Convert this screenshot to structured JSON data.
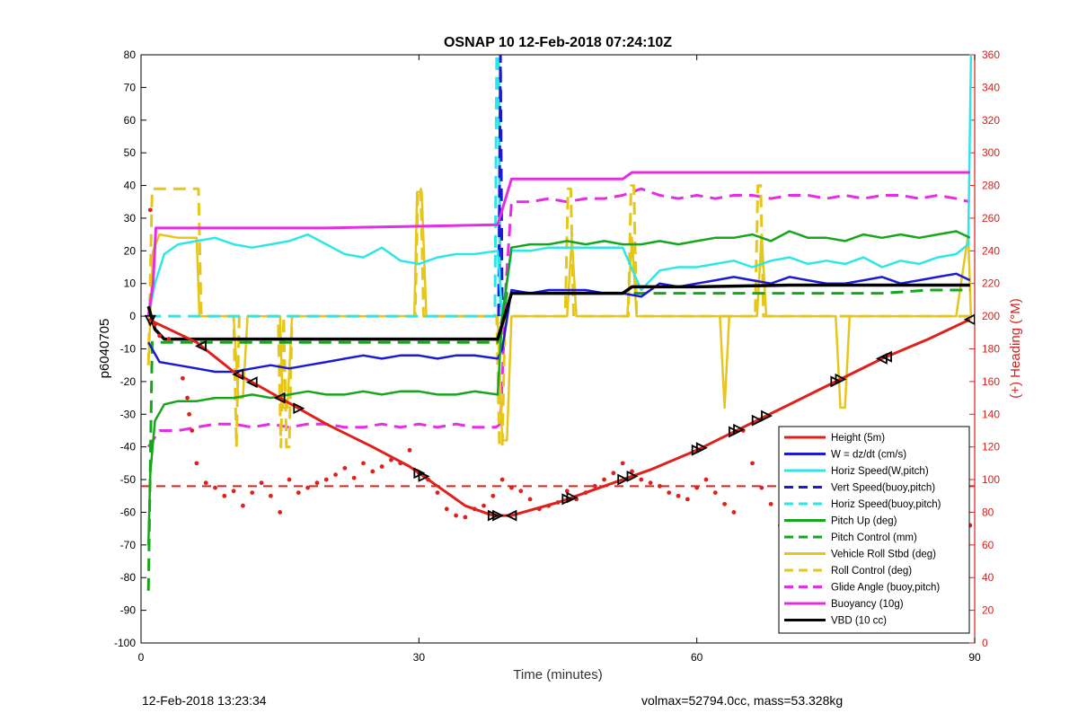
{
  "footer": {
    "timestamp": "12-Feb-2018 13:23:34",
    "volmax_mass": "volmax=52794.0cc, mass=53.328kg"
  },
  "chart_data": {
    "type": "line",
    "title": "OSNAP 10 12-Feb-2018 07:24:10Z",
    "xlabel": "Time (minutes)",
    "ylabel": "p6040705",
    "y2label": "(+) Heading (°M)",
    "xlim": [
      0,
      90
    ],
    "ylim": [
      -100,
      80
    ],
    "y2lim": [
      0,
      360
    ],
    "xticks": [
      0,
      30,
      60,
      90
    ],
    "yticks": [
      -100,
      -90,
      -80,
      -70,
      -60,
      -50,
      -40,
      -30,
      -20,
      -10,
      0,
      10,
      20,
      30,
      40,
      50,
      60,
      70,
      80
    ],
    "y2ticks": [
      0,
      20,
      40,
      60,
      80,
      100,
      120,
      140,
      160,
      180,
      200,
      220,
      240,
      260,
      280,
      300,
      320,
      340,
      360
    ],
    "grid": false,
    "legend_position": "bottom-right",
    "colors": {
      "red": "#e0201b",
      "blue": "#1a1ad4",
      "cyan": "#2ee6e6",
      "green": "#17a51c",
      "gold": "#e6c619",
      "magenta": "#e52de5",
      "black": "#000000",
      "heading_axis": "#d6201b"
    },
    "series": [
      {
        "name": "Height (5m)",
        "color": "#e0201b",
        "style": "solid",
        "width": 3,
        "x": [
          0.8,
          6,
          10,
          15,
          20,
          25,
          29,
          32,
          35,
          38,
          40,
          45,
          50,
          55,
          60,
          65,
          70,
          75,
          80,
          85,
          89.5
        ],
        "y": [
          -1,
          -8,
          -17,
          -25,
          -33,
          -40,
          -46,
          -52,
          -58,
          -61,
          -61,
          -57,
          -52,
          -47,
          -41,
          -34,
          -27,
          -20,
          -13,
          -7,
          -1
        ]
      },
      {
        "name": "W = dz/dt (cm/s)",
        "color": "#1a1ad4",
        "style": "solid",
        "width": 2.5,
        "x": [
          0.8,
          2,
          4,
          6,
          8,
          10,
          12,
          14,
          16,
          18,
          20,
          22,
          24,
          26,
          28,
          30,
          32,
          34,
          36,
          38.5,
          39,
          40,
          42,
          44,
          46,
          48,
          50,
          52,
          54,
          56,
          58,
          60,
          62,
          64,
          66,
          68,
          70,
          72,
          74,
          76,
          78,
          80,
          82,
          84,
          86,
          88,
          89.5
        ],
        "y": [
          -8,
          -14,
          -15,
          -16,
          -17,
          -17,
          -16,
          -15,
          -16,
          -15,
          -14,
          -13,
          -12,
          -13,
          -12,
          -12,
          -13,
          -12,
          -12,
          -13,
          -10,
          8,
          7,
          8,
          8,
          8,
          7,
          7,
          6,
          10,
          9,
          10,
          11,
          12,
          11,
          10,
          12,
          11,
          10,
          10,
          11,
          12,
          10,
          11,
          12,
          13,
          11
        ]
      },
      {
        "name": "Horiz Speed(W,pitch)",
        "color": "#2ee6e6",
        "style": "solid",
        "width": 2.5,
        "x": [
          0.8,
          1.5,
          2.5,
          4,
          6,
          8,
          10,
          12,
          14,
          16,
          18,
          20,
          22,
          24,
          26,
          28,
          30,
          32,
          34,
          36,
          38.5,
          39,
          40,
          42,
          44,
          46,
          48,
          50,
          52,
          54,
          56,
          58,
          60,
          62,
          64,
          66,
          68,
          70,
          72,
          74,
          76,
          78,
          80,
          82,
          84,
          86,
          88,
          89.3,
          89.6
        ],
        "y": [
          0,
          10,
          19,
          22,
          23,
          24,
          22,
          21,
          22,
          23,
          25,
          22,
          19,
          18,
          21,
          17,
          16,
          18,
          19,
          19,
          20,
          0,
          20,
          20,
          21,
          21,
          21,
          21,
          21,
          8,
          14,
          15,
          15,
          16,
          17,
          15,
          17,
          18,
          16,
          17,
          16,
          18,
          15,
          17,
          16,
          18,
          19,
          22,
          80
        ]
      },
      {
        "name": "Vert Speed(buoy,pitch)",
        "color": "#1a1ad4",
        "style": "dashed",
        "width": 3,
        "x": [
          38.6,
          38.8,
          39.0
        ],
        "y": [
          0,
          80,
          0
        ]
      },
      {
        "name": "Horiz Speed(buoy,pitch)",
        "color": "#2ee6e6",
        "style": "dashed",
        "width": 3,
        "x": [
          0.8,
          38.2,
          38.4,
          38.6,
          38.8
        ],
        "y": [
          0,
          0,
          80,
          80,
          0
        ]
      },
      {
        "name": "Pitch Up (deg)",
        "color": "#17a51c",
        "style": "solid",
        "width": 2.5,
        "x": [
          0.8,
          1.0,
          1.5,
          2.5,
          4,
          6,
          8,
          10,
          12,
          14,
          16,
          18,
          20,
          22,
          24,
          26,
          28,
          30,
          32,
          34,
          36,
          38.5,
          39,
          40,
          42,
          44,
          46,
          48,
          50,
          52,
          54,
          56,
          58,
          60,
          62,
          64,
          66,
          68,
          70,
          72,
          74,
          76,
          78,
          80,
          82,
          84,
          86,
          88,
          89.5
        ],
        "y": [
          -70,
          -48,
          -32,
          -27,
          -26,
          -26,
          -25,
          -25,
          -24,
          -25,
          -24,
          -23,
          -24,
          -24,
          -23,
          -24,
          -23,
          -23,
          -24,
          -24,
          -23,
          -24,
          0,
          21,
          22,
          22,
          23,
          22,
          23,
          22,
          22,
          23,
          22,
          23,
          24,
          24,
          25,
          23,
          26,
          24,
          24,
          23,
          25,
          24,
          25,
          24,
          25,
          26,
          24
        ]
      },
      {
        "name": "Pitch Control (mm)",
        "color": "#17a51c",
        "style": "dashed",
        "width": 3,
        "x": [
          0.8,
          1.2,
          1.6,
          5,
          10,
          15,
          20,
          25,
          30,
          35,
          38.5,
          39.5,
          45,
          50,
          55,
          60,
          65,
          70,
          75,
          80,
          85,
          89.5
        ],
        "y": [
          -84,
          -8,
          -8,
          -8,
          -8,
          -8,
          -8,
          -8,
          -8,
          -8,
          -8,
          7,
          7,
          7,
          7,
          7,
          7,
          7,
          7,
          7,
          8,
          8
        ]
      },
      {
        "name": "Vehicle Roll Stbd (deg)",
        "color": "#e6c619",
        "style": "solid",
        "width": 2.5,
        "x": [
          0.8,
          1.3,
          2,
          4,
          6,
          6.3,
          6.6,
          10,
          10.5,
          11,
          11.5,
          15,
          15.3,
          15.8,
          16.3,
          20,
          25,
          29.5,
          29.8,
          30.3,
          30.8,
          35,
          38.5,
          39,
          39.5,
          40,
          45,
          46,
          46.5,
          47,
          50,
          52.5,
          53,
          53.5,
          55,
          60,
          62.5,
          63,
          63.5,
          66.5,
          67,
          67.5,
          70,
          75,
          75.5,
          76,
          76.5,
          80,
          85,
          88,
          89.3,
          89.6
        ],
        "y": [
          -15,
          20,
          25,
          24,
          24,
          0,
          0,
          0,
          -25,
          -25,
          0,
          0,
          -28,
          -28,
          0,
          0,
          0,
          0,
          38,
          38,
          0,
          0,
          0,
          -38,
          -38,
          0,
          0,
          0,
          24,
          0,
          0,
          0,
          24,
          0,
          0,
          0,
          0,
          -28,
          0,
          0,
          25,
          0,
          0,
          0,
          -28,
          -28,
          0,
          0,
          0,
          0,
          25,
          -1
        ]
      },
      {
        "name": "Roll Control (deg)",
        "color": "#e6c619",
        "style": "dashed",
        "width": 3,
        "x": [
          0.8,
          1.2,
          1.5,
          6.2,
          6.5,
          10,
          10.3,
          10.6,
          14.8,
          15.1,
          15.4,
          15.7,
          16,
          16.3,
          29.6,
          29.9,
          30.2,
          30.5,
          38.4,
          38.7,
          39.0,
          39.3,
          45.8,
          46.1,
          46.4,
          46.7,
          52.6,
          52.9,
          53.2,
          53.5,
          66.3,
          66.6,
          66.9,
          67.2,
          89.5
        ],
        "y": [
          -15,
          39,
          39,
          39,
          0,
          0,
          -40,
          0,
          0,
          -40,
          0,
          -40,
          -40,
          0,
          0,
          39,
          39,
          0,
          0,
          -40,
          -40,
          0,
          0,
          39,
          39,
          0,
          0,
          40,
          40,
          0,
          0,
          40,
          40,
          0,
          0
        ]
      },
      {
        "name": "Glide Angle (buoy,pitch)",
        "color": "#e52de5",
        "style": "dashed",
        "width": 3,
        "x": [
          0.8,
          1.5,
          2,
          4,
          6,
          8,
          10,
          12,
          14,
          16,
          18,
          20,
          22,
          24,
          26,
          28,
          30,
          32,
          34,
          36,
          38.3,
          38.8,
          39.4,
          40,
          42,
          44,
          46,
          48,
          50,
          52,
          54,
          56,
          58,
          60,
          62,
          64,
          66,
          68,
          70,
          72,
          74,
          76,
          78,
          80,
          82,
          84,
          86,
          88,
          89.5
        ],
        "y": [
          -40,
          -37,
          -35,
          -35,
          -34,
          -33,
          -33,
          -34,
          -33,
          -34,
          -33,
          -33,
          -34,
          -34,
          -33,
          -34,
          -33,
          -34,
          -33,
          -34,
          -34,
          -33,
          10,
          35,
          35,
          36,
          35,
          36,
          36,
          37,
          39,
          37,
          36,
          37,
          36,
          37,
          37,
          36,
          37,
          37,
          36,
          37,
          36,
          37,
          37,
          36,
          37,
          36,
          35
        ]
      },
      {
        "name": "Buoyancy (10g)",
        "color": "#e52de5",
        "style": "solid",
        "width": 3,
        "x": [
          0.8,
          1.3,
          1.6,
          20,
          38.5,
          40,
          52,
          53,
          70,
          89.5
        ],
        "y": [
          0,
          10,
          27,
          27,
          28,
          42,
          42,
          44,
          44,
          44
        ]
      },
      {
        "name": "VBD (10 cc)",
        "color": "#000000",
        "style": "solid",
        "width": 3.5,
        "x": [
          0.8,
          1.5,
          2.5,
          10,
          20,
          30,
          38.5,
          40,
          52,
          53,
          60,
          70,
          80,
          89.5
        ],
        "y": [
          3,
          -4,
          -7,
          -7,
          -7,
          -7,
          -7,
          7,
          7,
          9,
          9,
          9.5,
          9.5,
          9.5
        ]
      }
    ],
    "heading_dashed_line": {
      "axis": "y2",
      "value": 96,
      "color": "#e0201b"
    },
    "heading_points": {
      "axis": "y2",
      "color": "#e0201b",
      "x": [
        1,
        1.5,
        2,
        3,
        4.5,
        5,
        5.2,
        5.5,
        6,
        7,
        8,
        9,
        10,
        11,
        12,
        13,
        14,
        15,
        16,
        17,
        18,
        19,
        20,
        21,
        22,
        23,
        24,
        25,
        26,
        27,
        28,
        29,
        30,
        31,
        32,
        33,
        34,
        35,
        36,
        37,
        38,
        39,
        40,
        41,
        42,
        43,
        44,
        45,
        46,
        47,
        48,
        49,
        50,
        51,
        52,
        53,
        54,
        55,
        56,
        57,
        58,
        59,
        60,
        61,
        62,
        63,
        64,
        65,
        66,
        67,
        68,
        69,
        70,
        71,
        72,
        73,
        74,
        75,
        76,
        77,
        78,
        79,
        80,
        81,
        82,
        83,
        84,
        85,
        86,
        87,
        88,
        89,
        89.5
      ],
      "y": [
        265,
        195,
        188,
        186,
        162,
        150,
        140,
        130,
        110,
        98,
        95,
        90,
        93,
        84,
        92,
        98,
        90,
        80,
        100,
        92,
        95,
        98,
        100,
        103,
        107,
        101,
        110,
        105,
        108,
        112,
        110,
        118,
        104,
        100,
        92,
        82,
        78,
        77,
        82,
        84,
        90,
        100,
        95,
        93,
        88,
        82,
        84,
        86,
        93,
        88,
        92,
        96,
        100,
        104,
        110,
        105,
        100,
        98,
        96,
        92,
        90,
        88,
        95,
        100,
        92,
        85,
        80,
        130,
        110,
        95,
        85,
        72,
        78,
        100,
        110,
        112,
        110,
        104,
        96,
        86,
        80,
        82,
        88,
        84,
        92,
        100,
        95,
        90,
        86,
        80,
        85,
        78,
        72
      ]
    },
    "markers": {
      "series": "Height (5m)",
      "x": [
        1,
        6.5,
        10.5,
        12,
        15,
        17,
        30,
        30.5,
        38,
        38.5,
        40,
        46,
        46.5,
        52,
        53,
        60,
        60.5,
        64,
        64.5,
        66.5,
        67.5,
        75,
        75.5,
        80,
        80.5,
        89.5
      ],
      "directions": [
        "down",
        "left",
        "left",
        "left",
        "left",
        "right",
        "right",
        "right",
        "right",
        "right",
        "left",
        "right",
        "right",
        "right",
        "right",
        "right",
        "right",
        "right",
        "right",
        "right",
        "right",
        "right",
        "right",
        "left",
        "left",
        "left"
      ]
    }
  }
}
